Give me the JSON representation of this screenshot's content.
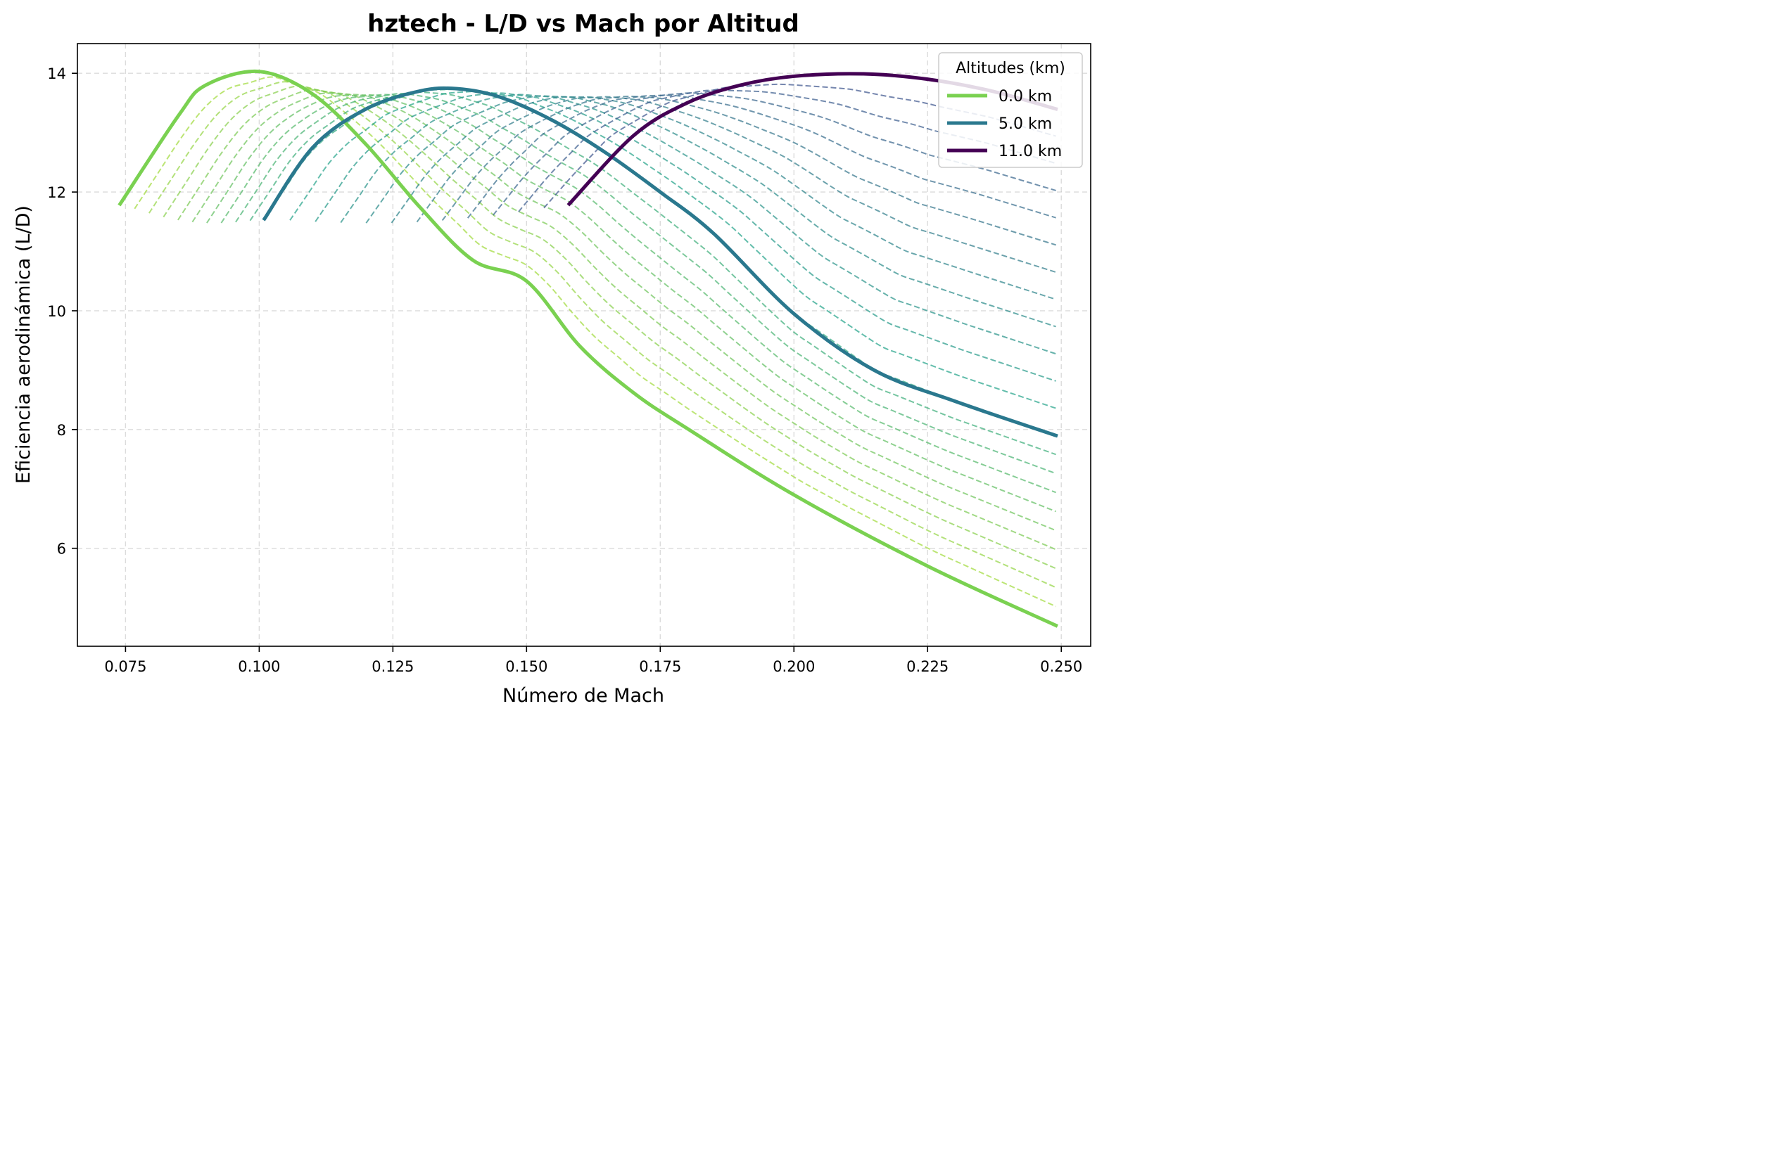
{
  "chart_data": {
    "type": "line",
    "title": "hztech - L/D vs Mach por Altitud",
    "xlabel": "Número de Mach",
    "ylabel": "Eficiencia aerodinámica (L/D)",
    "xlim": [
      0.066,
      0.2555
    ],
    "ylim": [
      4.35,
      14.5
    ],
    "xticks": [
      0.075,
      0.1,
      0.125,
      0.15,
      0.175,
      0.2,
      0.225,
      0.25
    ],
    "xtick_labels": [
      "0.075",
      "0.100",
      "0.125",
      "0.150",
      "0.175",
      "0.200",
      "0.225",
      "0.250"
    ],
    "yticks": [
      6,
      8,
      10,
      12,
      14
    ],
    "ytick_labels": [
      "6",
      "8",
      "10",
      "12",
      "14"
    ],
    "grid": true,
    "legend": {
      "title": "Altitudes (km)",
      "position": "top-right"
    },
    "x_max": 0.249,
    "series": [
      {
        "name": "0.0 km",
        "color": "#7ad151",
        "altitude_km": 0.0,
        "x_start": 0.074,
        "x": [
          0.074,
          0.085,
          0.09,
          0.1,
          0.11,
          0.12,
          0.13,
          0.14,
          0.15,
          0.16,
          0.17,
          0.18,
          0.2,
          0.225,
          0.249
        ],
        "y": [
          11.8,
          13.3,
          13.8,
          14.03,
          13.65,
          12.8,
          11.75,
          10.85,
          10.5,
          9.4,
          8.62,
          8.02,
          6.9,
          5.7,
          4.7
        ]
      },
      {
        "name": "5.0 km",
        "color": "#2a788e",
        "altitude_km": 5.0,
        "x_start": 0.101,
        "x": [
          0.101,
          0.11,
          0.12,
          0.13,
          0.137,
          0.145,
          0.155,
          0.165,
          0.175,
          0.185,
          0.2,
          0.215,
          0.23,
          0.249
        ],
        "y": [
          11.55,
          12.75,
          13.4,
          13.7,
          13.74,
          13.6,
          13.2,
          12.65,
          12.0,
          11.3,
          9.95,
          9.0,
          8.48,
          7.9
        ]
      },
      {
        "name": "11.0 km",
        "color": "#440154",
        "altitude_km": 11.0,
        "x_start": 0.158,
        "x": [
          0.158,
          0.17,
          0.18,
          0.19,
          0.2,
          0.213,
          0.225,
          0.237,
          0.249
        ],
        "y": [
          11.8,
          12.95,
          13.5,
          13.8,
          13.95,
          13.99,
          13.9,
          13.7,
          13.4
        ]
      }
    ],
    "intermediate_curves": {
      "style": "dashed",
      "count": 21,
      "altitude_km_range": [
        0.5,
        10.5
      ],
      "colors": [
        "#a0da39",
        "#1fa187",
        "#3b528b"
      ],
      "note_values": "interpolated between the three labeled altitudes"
    }
  }
}
